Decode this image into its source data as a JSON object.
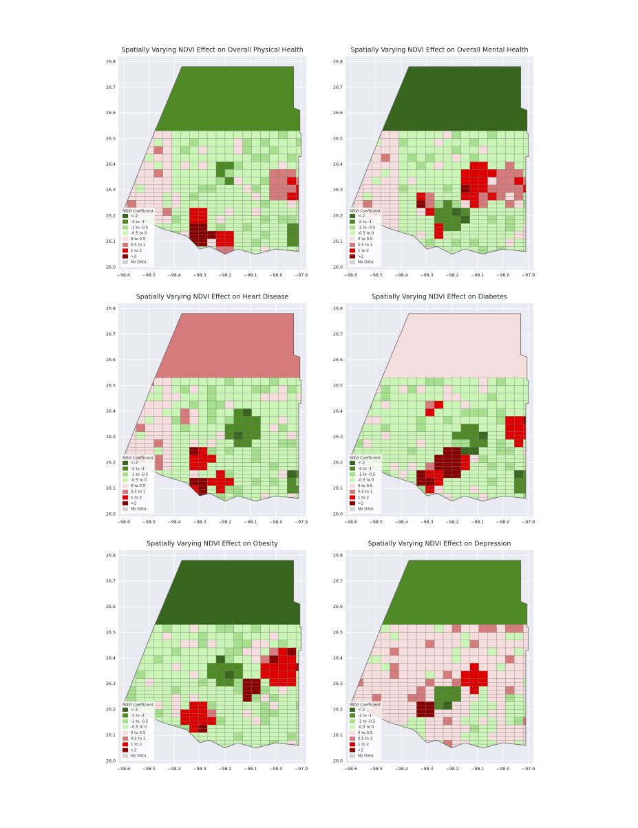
{
  "panels": [
    {
      "title": "Spatially Varying NDVI Effect on Overall Physical Health"
    },
    {
      "title": "Spatially Varying NDVI Effect on Overall Mental Health"
    },
    {
      "title": "Spatially Varying NDVI Effect on Heart Disease"
    },
    {
      "title": "Spatially Varying NDVI Effect on Diabetes"
    },
    {
      "title": "Spatially Varying NDVI Effect on Obesity"
    },
    {
      "title": "Spatially Varying NDVI Effect on Depression"
    }
  ],
  "xlim": [
    -98.62,
    -97.88
  ],
  "ylim": [
    25.99,
    26.82
  ],
  "xticks": [
    {
      "value": -98.6,
      "label": "−98.6"
    },
    {
      "value": -98.5,
      "label": "−98.5"
    },
    {
      "value": -98.4,
      "label": "−98.4"
    },
    {
      "value": -98.3,
      "label": "−98.3"
    },
    {
      "value": -98.2,
      "label": "−98.2"
    },
    {
      "value": -98.1,
      "label": "−98.1"
    },
    {
      "value": -98.0,
      "label": "−98.0"
    },
    {
      "value": -97.9,
      "label": "−97.9"
    }
  ],
  "yticks": [
    {
      "value": 26.0,
      "label": "26.0"
    },
    26.1,
    26.2,
    26.3,
    26.4,
    26.5,
    26.6,
    26.7,
    26.8
  ],
  "grid": true,
  "legend": {
    "title": "NDVI Coefficient",
    "items": [
      {
        "label": "<-2",
        "color": "#38661e"
      },
      {
        "label": "-2 to -1",
        "color": "#4f8a27"
      },
      {
        "label": "-1 to -0.5",
        "color": "#a6df8e"
      },
      {
        "label": "-0.5 to 0",
        "color": "#cbf5b6"
      },
      {
        "label": "0 to 0.5",
        "color": "#f6dede"
      },
      {
        "label": "0.5 to 1",
        "color": "#d67b7b"
      },
      {
        "label": "1 to 2",
        "color": "#dd0000"
      },
      {
        "label": ">2",
        "color": "#880000"
      },
      {
        "label": "No Data",
        "color": "#d3d3d3"
      }
    ]
  }
}
